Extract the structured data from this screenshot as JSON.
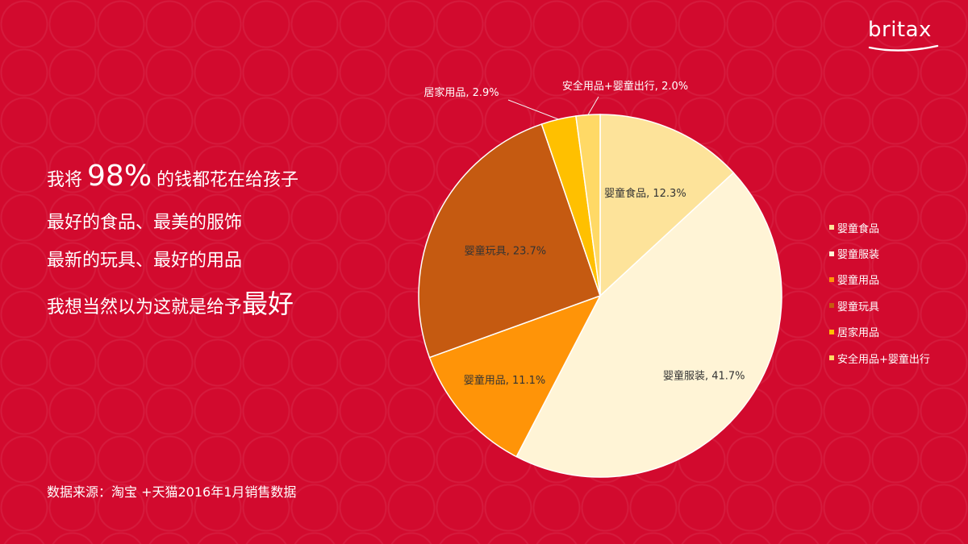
{
  "logo": {
    "text": "britax"
  },
  "headline": {
    "line1_pre": "我将",
    "line1_pct": "98%",
    "line1_post": "的钱都花在给孩子",
    "line2": "最好的食品、最美的服饰",
    "line3": "最新的玩具、最好的用品",
    "line4_pre": "我想当然以为这就是给予",
    "line4_big": "最好"
  },
  "source": "数据来源：淘宝 +天猫2016年1月销售数据",
  "chart_data": {
    "type": "pie",
    "title": "",
    "categories": [
      "婴童食品",
      "婴童服装",
      "婴童用品",
      "婴童玩具",
      "居家用品",
      "安全用品+婴童出行"
    ],
    "values": [
      12.3,
      41.7,
      11.1,
      23.7,
      2.9,
      2.0
    ],
    "value_labels": [
      "婴童食品, 12.3%",
      "婴童服装, 41.7%",
      "婴童用品, 11.1%",
      "婴童玩具, 23.7%",
      "居家用品, 2.9%",
      "安全用品+婴童出行, 2.0%"
    ],
    "colors": [
      "#fde39a",
      "#fff4d6",
      "#ff9408",
      "#c55a11",
      "#ffc000",
      "#ffd966"
    ],
    "start_angle": "12 o'clock",
    "direction": "clockwise",
    "legend_position": "right"
  }
}
